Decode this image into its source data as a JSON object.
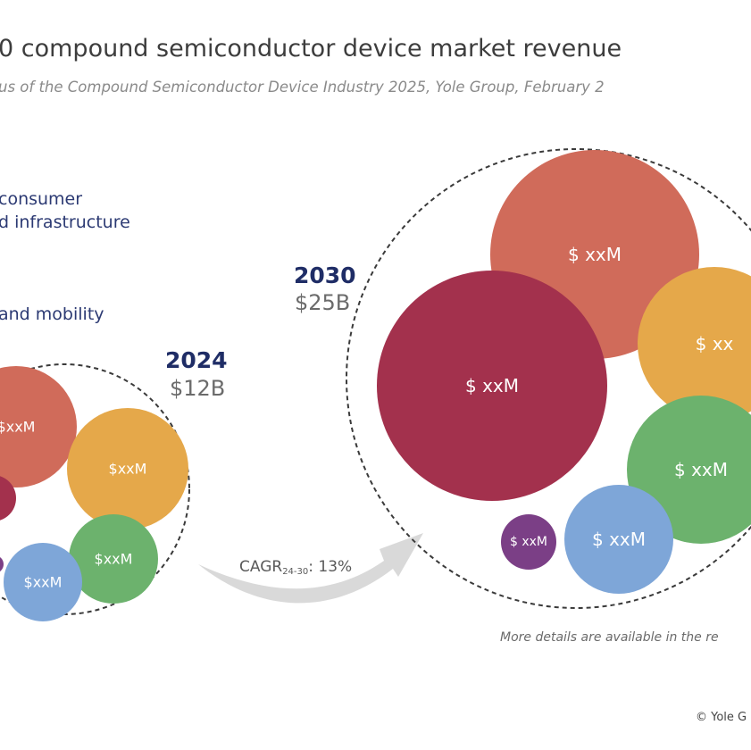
{
  "title": "0 compound semiconductor device market revenue",
  "subtitle": "us of the Compound Semiconductor Device Industry 2025, Yole Group, February 2",
  "legend": [
    {
      "label": "consumer"
    },
    {
      "label": "d infrastructure"
    },
    {
      "label": "and mobility"
    }
  ],
  "cagr": {
    "prefix": "CAGR",
    "sub": "24-30",
    "suffix": ": 13%"
  },
  "note": "More details are available in the re",
  "copyright": "© Yole G",
  "chart_data": [
    {
      "type": "bubble",
      "year": "2024",
      "total": "$12B",
      "bubbles": [
        {
          "label": "$xxM",
          "color": "#d06b5a"
        },
        {
          "label": "$xxM",
          "color": "#e5a84a"
        },
        {
          "label": "",
          "color": "#a3314d"
        },
        {
          "label": "$xxM",
          "color": "#6cb26d"
        },
        {
          "label": "$xxM",
          "color": "#7ea6d8"
        },
        {
          "label": "",
          "color": "#7b3f86"
        }
      ]
    },
    {
      "type": "bubble",
      "year": "2030",
      "total": "$25B",
      "bubbles": [
        {
          "label": "$ xxM",
          "color": "#d06b5a"
        },
        {
          "label": "$ xxM",
          "color": "#a3314d"
        },
        {
          "label": "$ xx",
          "color": "#e5a84a"
        },
        {
          "label": "$ xxM",
          "color": "#6cb26d"
        },
        {
          "label": "$ xxM",
          "color": "#7ea6d8"
        },
        {
          "label": "$ xxM",
          "color": "#7b3f86"
        }
      ]
    }
  ]
}
